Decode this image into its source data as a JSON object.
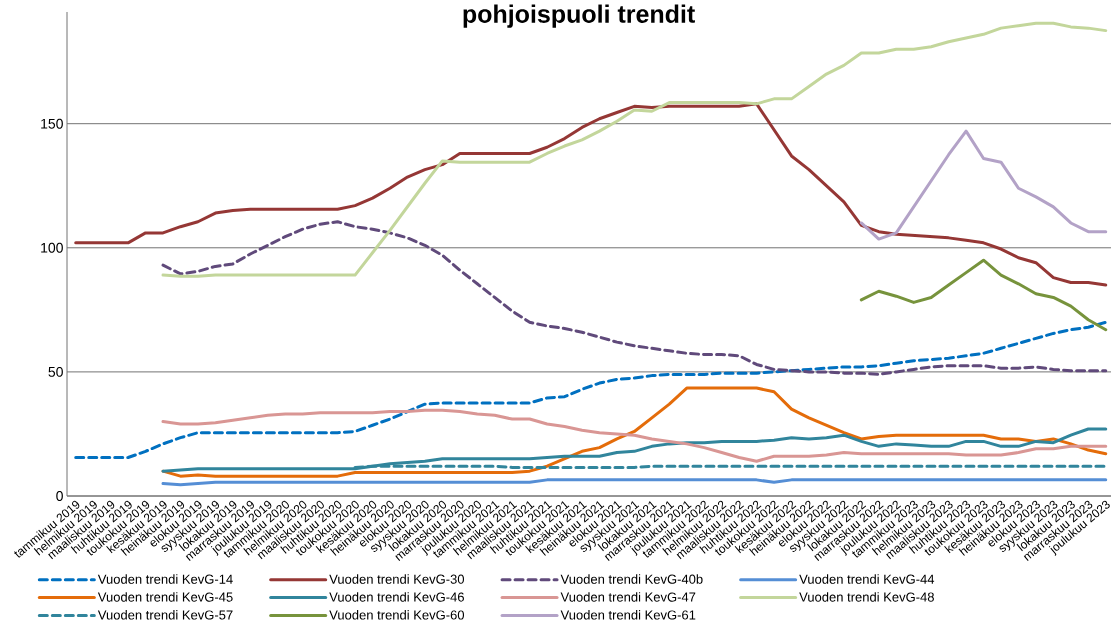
{
  "chart_data": {
    "type": "line",
    "title": "pohjoispuoli trendit",
    "categories": [
      "tammikuu 2019",
      "helmikuu 2019",
      "maaliskuu 2019",
      "huhtikuu 2019",
      "toukokuu 2019",
      "kesäkuu 2019",
      "heinäkuu 2019",
      "elokuu 2019",
      "syyskuu 2019",
      "lokakuu 2019",
      "marraskuu 2019",
      "joulukuu 2019",
      "tammikuu 2020",
      "helmikuu 2020",
      "maaliskuu 2020",
      "huhtikuu 2020",
      "toukokuu 2020",
      "kesäkuu 2020",
      "heinäkuu 2020",
      "elokuu 2020",
      "syyskuu 2020",
      "lokakuu 2020",
      "marraskuu 2020",
      "joulukuu 2020",
      "tammikuu 2021",
      "helmikuu 2021",
      "maaliskuu 2021",
      "huhtikuu 2021",
      "toukokuu 2021",
      "kesäkuu 2021",
      "heinäkuu 2021",
      "elokuu 2021",
      "syyskuu 2021",
      "lokakuu 2021",
      "marraskuu 2021",
      "joulukuu 2021",
      "tammikuu 2022",
      "helmikuu 2022",
      "maaliskuu 2022",
      "huhtikuu 2022",
      "toukokuu 2022",
      "kesäkuu 2022",
      "heinäkuu 2022",
      "elokuu 2022",
      "syyskuu 2022",
      "lokakuu 2022",
      "marraskuu 2022",
      "joulukuu 2022",
      "tammikuu 2023",
      "helmikuu 2023",
      "maaliskuu 2023",
      "huhtikuu 2023",
      "toukokuu 2023",
      "kesäkuu 2023",
      "heinäkuu 2023",
      "elokuu 2023",
      "syyskuu 2023",
      "lokakuu 2023",
      "marraskuu 2023",
      "joulukuu 2023"
    ],
    "series": [
      {
        "name": "Vuoden trendi KevG-14",
        "color": "#0070c0",
        "line_style": "dashed",
        "values": [
          15.5,
          15.5,
          15.5,
          15.5,
          18,
          21,
          23.5,
          25.5,
          25.5,
          25.5,
          25.5,
          25.5,
          25.5,
          25.5,
          25.5,
          25.5,
          26,
          28.5,
          31,
          34,
          37,
          37.5,
          37.5,
          37.5,
          37.5,
          37.5,
          37.5,
          39.5,
          40,
          43,
          45.5,
          47,
          47.5,
          48.5,
          49,
          49,
          49,
          49.5,
          49.5,
          49.5,
          50,
          50.5,
          51,
          51.5,
          52,
          52,
          52.5,
          53.5,
          54.5,
          55,
          55.5,
          56.5,
          57.5,
          59.5,
          61.5,
          63.5,
          65.5,
          67,
          68,
          70
        ]
      },
      {
        "name": "Vuoden trendi KevG-30",
        "color": "#953735",
        "line_style": "solid",
        "values": [
          102,
          102,
          102,
          102,
          106,
          106,
          108.5,
          110.5,
          114,
          115,
          115.5,
          115.5,
          115.5,
          115.5,
          115.5,
          115.5,
          117,
          120,
          124,
          128.5,
          131.5,
          133.5,
          138,
          138,
          138,
          138,
          138,
          140.5,
          144,
          148.5,
          152,
          154.5,
          157,
          156.5,
          157,
          157,
          157,
          157,
          157,
          158,
          147.5,
          137,
          131.5,
          125,
          118.5,
          109,
          106.5,
          105.5,
          105,
          104.5,
          104,
          103,
          102,
          99.5,
          96,
          94,
          88,
          86,
          86,
          85
        ]
      },
      {
        "name": "Vuoden trendi KevG-40b",
        "color": "#604a7b",
        "line_style": "dashed",
        "values": [
          null,
          null,
          null,
          null,
          null,
          93,
          89.5,
          90.5,
          92.5,
          93.5,
          97.5,
          101,
          104.5,
          107.5,
          109.5,
          110.5,
          108.5,
          107.5,
          106,
          104,
          101,
          97,
          91,
          85.5,
          80,
          74.5,
          70,
          68.5,
          67.5,
          66,
          64,
          62,
          60.5,
          59.5,
          58.5,
          57.5,
          57,
          57,
          56.5,
          53,
          51,
          50.5,
          50,
          50,
          49.5,
          49.5,
          49,
          50,
          51,
          52,
          52.5,
          52.5,
          52.5,
          51.5,
          51.5,
          52,
          51,
          50.5,
          50.5,
          50.5
        ]
      },
      {
        "name": "Vuoden trendi KevG-44",
        "color": "#558ed5",
        "line_style": "solid",
        "values": [
          null,
          null,
          null,
          null,
          null,
          5,
          4.5,
          5,
          5.5,
          5.5,
          5.5,
          5.5,
          5.5,
          5.5,
          5.5,
          5.5,
          5.5,
          5.5,
          5.5,
          5.5,
          5.5,
          5.5,
          5.5,
          5.5,
          5.5,
          5.5,
          5.5,
          6.5,
          6.5,
          6.5,
          6.5,
          6.5,
          6.5,
          6.5,
          6.5,
          6.5,
          6.5,
          6.5,
          6.5,
          6.5,
          5.5,
          6.5,
          6.5,
          6.5,
          6.5,
          6.5,
          6.5,
          6.5,
          6.5,
          6.5,
          6.5,
          6.5,
          6.5,
          6.5,
          6.5,
          6.5,
          6.5,
          6.5,
          6.5,
          6.5
        ]
      },
      {
        "name": "Vuoden trendi KevG-45",
        "color": "#e46c0a",
        "line_style": "solid",
        "values": [
          null,
          null,
          null,
          null,
          null,
          10,
          8,
          8.5,
          8,
          8,
          8,
          8,
          8,
          8,
          8,
          8,
          9.5,
          9.5,
          9.5,
          9.5,
          9.5,
          9.5,
          9.5,
          9.5,
          9.5,
          9.5,
          10,
          12,
          15,
          18,
          19.5,
          23,
          26,
          31.5,
          37,
          43.5,
          43.5,
          43.5,
          43.5,
          43.5,
          42,
          35,
          31.5,
          28.5,
          25.5,
          23,
          24,
          24.5,
          24.5,
          24.5,
          24.5,
          24.5,
          24.5,
          23,
          23,
          22,
          23,
          21,
          18.5,
          17
        ]
      },
      {
        "name": "Vuoden trendi KevG-46",
        "color": "#31859c",
        "line_style": "solid",
        "values": [
          null,
          null,
          null,
          null,
          null,
          10,
          10.5,
          11,
          11,
          11,
          11,
          11,
          11,
          11,
          11,
          11,
          11,
          12,
          13,
          13.5,
          14,
          15,
          15,
          15,
          15,
          15,
          15,
          15.5,
          16,
          16,
          16,
          17.5,
          18,
          20,
          21,
          21.5,
          21.5,
          22,
          22,
          22,
          22.5,
          23.5,
          23,
          23.5,
          24.5,
          22,
          20,
          21,
          20.5,
          20,
          20,
          22,
          22,
          20,
          20,
          22,
          21.5,
          24.5,
          27,
          27
        ]
      },
      {
        "name": "Vuoden trendi KevG-47",
        "color": "#d99694",
        "line_style": "solid",
        "values": [
          null,
          null,
          null,
          null,
          null,
          30,
          29,
          29,
          29.5,
          30.5,
          31.5,
          32.5,
          33,
          33,
          33.5,
          33.5,
          33.5,
          33.5,
          34,
          34,
          34.5,
          34.5,
          34,
          33,
          32.5,
          31,
          31,
          29,
          28,
          26.5,
          25.5,
          25,
          24.5,
          23,
          22,
          21,
          19.5,
          17.5,
          15.5,
          14,
          16,
          16,
          16,
          16.5,
          17.5,
          17,
          17,
          17,
          17,
          17,
          17,
          16.5,
          16.5,
          16.5,
          17.5,
          19,
          19,
          20,
          20,
          20
        ]
      },
      {
        "name": "Vuoden trendi KevG-48",
        "color": "#c3d69b",
        "line_style": "solid",
        "values": [
          null,
          null,
          null,
          null,
          null,
          89,
          88.5,
          88.5,
          89,
          89,
          89,
          89,
          89,
          89,
          89,
          89,
          89,
          98,
          107,
          116.5,
          126,
          135,
          134.5,
          134.5,
          134.5,
          134.5,
          134.5,
          138,
          141,
          143.5,
          147,
          151,
          155.5,
          155,
          158.5,
          158.5,
          158.5,
          158.5,
          158.5,
          158,
          160,
          160,
          165,
          170,
          173.5,
          178.5,
          178.5,
          180,
          180,
          181,
          183,
          184.5,
          186,
          188.5,
          189.5,
          190.5,
          190.5,
          189,
          188.5,
          187.5
        ]
      },
      {
        "name": "Vuoden trendi KevG-57",
        "color": "#31859c",
        "line_style": "dashed",
        "values": [
          null,
          null,
          null,
          null,
          null,
          null,
          null,
          null,
          null,
          null,
          null,
          null,
          null,
          null,
          null,
          null,
          11.5,
          12,
          12,
          12,
          12,
          12,
          12,
          12,
          12,
          11.5,
          11.5,
          11.5,
          11.5,
          11.5,
          11.5,
          11.5,
          11.5,
          12,
          12,
          12,
          12,
          12,
          12,
          12,
          12,
          12,
          12,
          12,
          12,
          12,
          12,
          12,
          12,
          12,
          12,
          12,
          12,
          12,
          12,
          12,
          12,
          12,
          12,
          12
        ]
      },
      {
        "name": "Vuoden trendi KevG-60",
        "color": "#77933c",
        "line_style": "solid",
        "values": [
          null,
          null,
          null,
          null,
          null,
          null,
          null,
          null,
          null,
          null,
          null,
          null,
          null,
          null,
          null,
          null,
          null,
          null,
          null,
          null,
          null,
          null,
          null,
          null,
          null,
          null,
          null,
          null,
          null,
          null,
          null,
          null,
          null,
          null,
          null,
          null,
          null,
          null,
          null,
          null,
          null,
          null,
          null,
          null,
          null,
          79,
          82.5,
          80.5,
          78,
          80,
          85,
          90,
          95,
          89,
          85.5,
          81.5,
          80,
          76.5,
          71,
          67
        ]
      },
      {
        "name": "Vuoden trendi KevG-61",
        "color": "#b3a2c7",
        "line_style": "solid",
        "values": [
          null,
          null,
          null,
          null,
          null,
          null,
          null,
          null,
          null,
          null,
          null,
          null,
          null,
          null,
          null,
          null,
          null,
          null,
          null,
          null,
          null,
          null,
          null,
          null,
          null,
          null,
          null,
          null,
          null,
          null,
          null,
          null,
          null,
          null,
          null,
          null,
          null,
          null,
          null,
          null,
          null,
          null,
          null,
          null,
          null,
          110,
          103.5,
          106,
          116.5,
          127,
          137.5,
          147,
          136,
          134.5,
          124,
          120.5,
          116.5,
          110,
          106.5,
          106.5
        ]
      }
    ],
    "ylim": [
      0,
      195
    ],
    "yticks": [
      0,
      50,
      100,
      150
    ],
    "grid": "y",
    "legend": "bottom"
  }
}
